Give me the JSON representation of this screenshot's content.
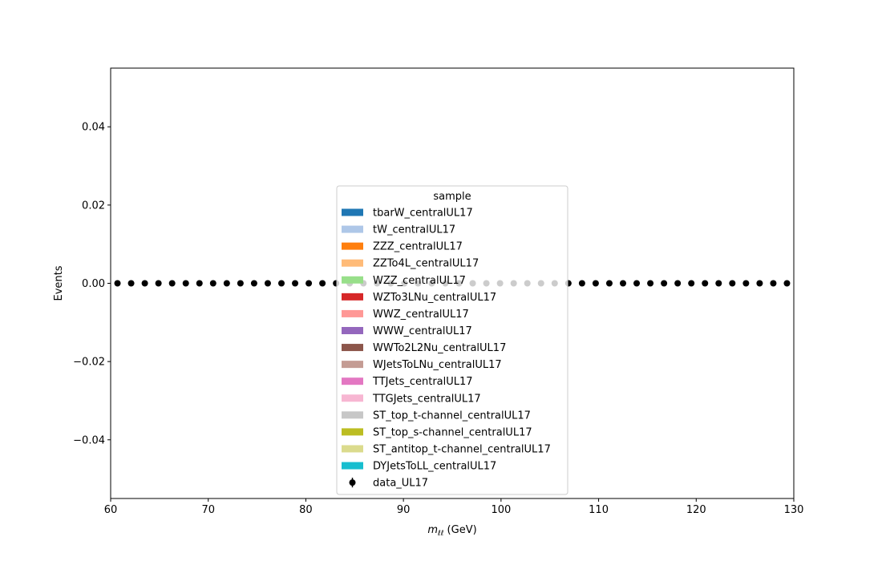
{
  "chart_data": {
    "type": "bar",
    "title": "",
    "xlabel_main": "m",
    "xlabel_sub": "ℓℓ",
    "xlabel_unit": " (GeV)",
    "ylabel": "Events",
    "xlim": [
      60,
      130
    ],
    "ylim": [
      -0.055,
      0.055
    ],
    "xticks": [
      60,
      70,
      80,
      90,
      100,
      110,
      120,
      130
    ],
    "yticks": [
      -0.04,
      -0.02,
      0.0,
      0.02,
      0.04
    ],
    "ytick_labels": [
      "−0.04",
      "−0.02",
      "0.00",
      "0.02",
      "0.04"
    ],
    "grid": false,
    "legend": {
      "title": "sample",
      "placement": "center-bottom",
      "entries": [
        {
          "name": "tbarW_centralUL17",
          "color": "#1f77b4"
        },
        {
          "name": "tW_centralUL17",
          "color": "#aec7e8"
        },
        {
          "name": "ZZZ_centralUL17",
          "color": "#ff7f0e"
        },
        {
          "name": "ZZTo4L_centralUL17",
          "color": "#ffbb78"
        },
        {
          "name": "WZZ_centralUL17",
          "color": "#98df8a"
        },
        {
          "name": "WZTo3LNu_centralUL17",
          "color": "#d62728"
        },
        {
          "name": "WWZ_centralUL17",
          "color": "#ff9896"
        },
        {
          "name": "WWW_centralUL17",
          "color": "#9467bd"
        },
        {
          "name": "WWTo2L2Nu_centralUL17",
          "color": "#8c564b"
        },
        {
          "name": "WJetsToLNu_centralUL17",
          "color": "#c49c94"
        },
        {
          "name": "TTJets_centralUL17",
          "color": "#e377c2"
        },
        {
          "name": "TTGJets_centralUL17",
          "color": "#f7b6d2"
        },
        {
          "name": "ST_top_t-channel_centralUL17",
          "color": "#c7c7c7"
        },
        {
          "name": "ST_top_s-channel_centralUL17",
          "color": "#bcbd22"
        },
        {
          "name": "ST_antitop_t-channel_centralUL17",
          "color": "#dbdb8d"
        },
        {
          "name": "DYJetsToLL_centralUL17",
          "color": "#17becf"
        }
      ],
      "data_entry": {
        "name": "data_UL17",
        "marker": "errorbar-dot",
        "color": "#000000"
      }
    },
    "series": [
      {
        "name": "data_UL17",
        "type": "points",
        "x": [
          60.7,
          62.1,
          63.5,
          64.9,
          66.3,
          67.7,
          69.1,
          70.5,
          71.9,
          73.3,
          74.7,
          76.1,
          77.5,
          78.9,
          80.3,
          81.7,
          83.1,
          84.5,
          85.9,
          87.3,
          88.7,
          90.1,
          91.5,
          92.9,
          94.3,
          95.7,
          97.1,
          98.5,
          99.9,
          101.3,
          102.7,
          104.1,
          105.5,
          106.9,
          108.3,
          109.7,
          111.1,
          112.5,
          113.9,
          115.3,
          116.7,
          118.1,
          119.5,
          120.9,
          122.3,
          123.7,
          125.1,
          126.5,
          127.9,
          129.3
        ],
        "y": [
          0,
          0,
          0,
          0,
          0,
          0,
          0,
          0,
          0,
          0,
          0,
          0,
          0,
          0,
          0,
          0,
          0,
          0,
          0,
          0,
          0,
          0,
          0,
          0,
          0,
          0,
          0,
          0,
          0,
          0,
          0,
          0,
          0,
          0,
          0,
          0,
          0,
          0,
          0,
          0,
          0,
          0,
          0,
          0,
          0,
          0,
          0,
          0,
          0,
          0
        ]
      }
    ]
  }
}
